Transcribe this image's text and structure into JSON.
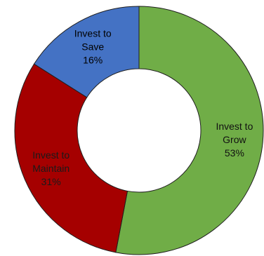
{
  "chart_data": {
    "type": "pie",
    "style": "donut",
    "slices": [
      {
        "label_lines": [
          "Invest to",
          "Grow"
        ],
        "value": 53,
        "value_text": "53%",
        "color": "#70ad47",
        "label_color": "#111111"
      },
      {
        "label_lines": [
          "Invest to",
          "Maintain"
        ],
        "value": 31,
        "value_text": "31%",
        "color": "#a50000",
        "label_color": "#1a1a1a"
      },
      {
        "label_lines": [
          "Invest to",
          "Save"
        ],
        "value": 16,
        "value_text": "16%",
        "color": "#4472c4",
        "label_color": "#000000"
      }
    ]
  }
}
